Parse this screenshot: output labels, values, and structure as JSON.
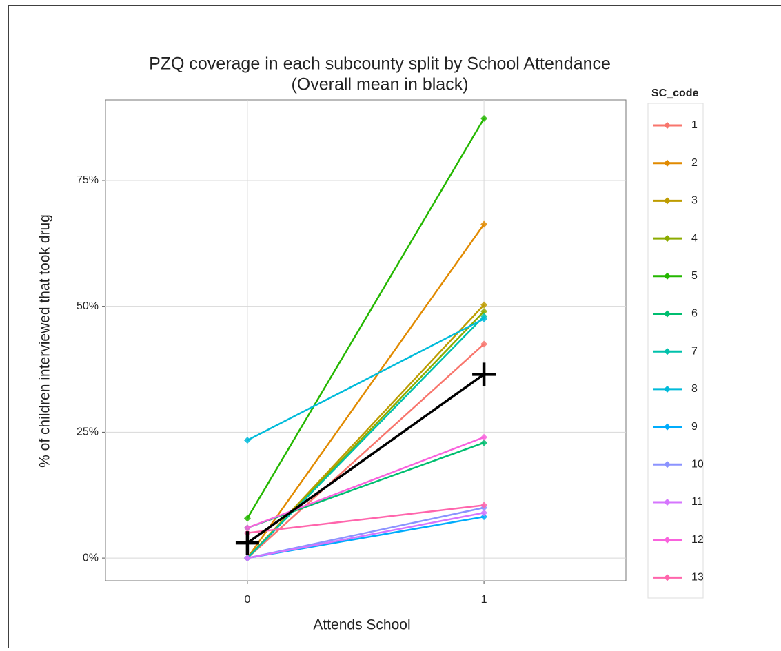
{
  "chart_data": {
    "type": "line",
    "title": "PZQ coverage in each subcounty split by School Attendance",
    "subtitle": "(Overall mean in black)",
    "x_label": "Attends School",
    "y_label": "% of children interviewed that took drug",
    "legend_title": "SC_code",
    "x": [
      0,
      1
    ],
    "xlim": [
      -0.6,
      1.6
    ],
    "xticks": [
      0,
      1
    ],
    "ylim": [
      -4.5,
      91
    ],
    "yticks": [
      {
        "value": 0,
        "label": "0%"
      },
      {
        "value": 25,
        "label": "25%"
      },
      {
        "value": 50,
        "label": "50%"
      },
      {
        "value": 75,
        "label": "75%"
      }
    ],
    "grid": true,
    "series": [
      {
        "name": "1",
        "color": "#F8766D",
        "values": [
          0,
          42.5
        ]
      },
      {
        "name": "2",
        "color": "#E18A00",
        "values": [
          0,
          66.3
        ]
      },
      {
        "name": "3",
        "color": "#BE9C00",
        "values": [
          0,
          50.3
        ]
      },
      {
        "name": "4",
        "color": "#8CAB00",
        "values": [
          0,
          49
        ]
      },
      {
        "name": "5",
        "color": "#24B700",
        "values": [
          7.9,
          87.3
        ]
      },
      {
        "name": "6",
        "color": "#00BE70",
        "values": [
          6,
          22.9
        ]
      },
      {
        "name": "7",
        "color": "#00C1AB",
        "values": [
          0,
          48
        ]
      },
      {
        "name": "8",
        "color": "#00BBDA",
        "values": [
          23.4,
          47.5
        ]
      },
      {
        "name": "9",
        "color": "#00ACFC",
        "values": [
          0,
          8.2
        ]
      },
      {
        "name": "10",
        "color": "#8B93FF",
        "values": [
          0,
          10
        ]
      },
      {
        "name": "11",
        "color": "#D575FE",
        "values": [
          0,
          9
        ]
      },
      {
        "name": "12",
        "color": "#F962DD",
        "values": [
          6,
          24
        ]
      },
      {
        "name": "13",
        "color": "#FF65AC",
        "values": [
          5,
          10.5
        ]
      }
    ],
    "mean": {
      "color": "#000000",
      "values": [
        3,
        36.5
      ]
    }
  }
}
